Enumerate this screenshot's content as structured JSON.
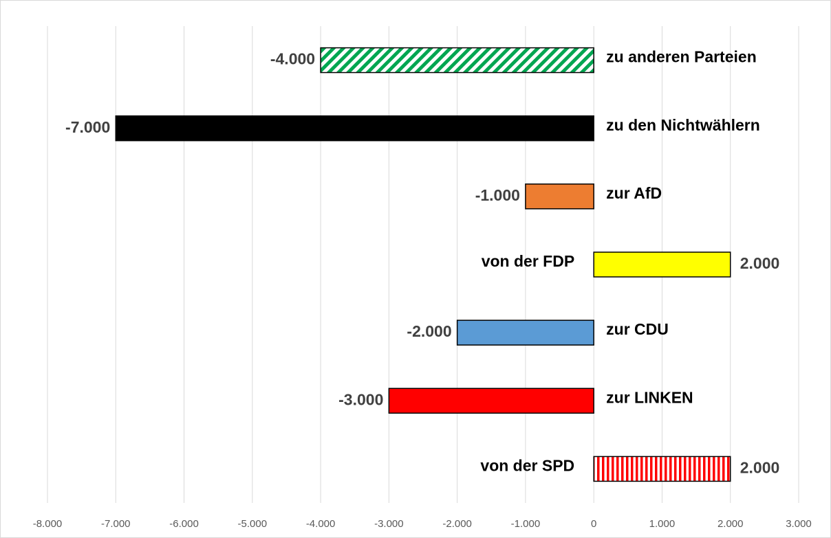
{
  "chart_data": {
    "type": "barh",
    "categories": [
      "zu anderen Parteien",
      "zu den Nichtwählern",
      "zur AfD",
      "von der FDP",
      "zur CDU",
      "zur LINKEN",
      "von der SPD"
    ],
    "values": [
      -4000,
      -7000,
      -1000,
      2000,
      -2000,
      -3000,
      2000
    ],
    "value_labels": [
      "-4.000",
      "-7.000",
      "-1.000",
      "2.000",
      "-2.000",
      "-3.000",
      "2.000"
    ],
    "colors": [
      "#00a651",
      "#000000",
      "#ed7d31",
      "#ffff00",
      "#5b9bd5",
      "#ff0000",
      "#ff0000"
    ],
    "patterns": [
      "diagonal",
      "solid",
      "solid",
      "solid",
      "solid",
      "solid",
      "vertical"
    ],
    "xlim": [
      -8000,
      3000
    ],
    "xticks": [
      {
        "value": -8000,
        "label": "-8.000"
      },
      {
        "value": -7000,
        "label": "-7.000"
      },
      {
        "value": -6000,
        "label": "-6.000"
      },
      {
        "value": -5000,
        "label": "-5.000"
      },
      {
        "value": -4000,
        "label": "-4.000"
      },
      {
        "value": -3000,
        "label": "-3.000"
      },
      {
        "value": -2000,
        "label": "-2.000"
      },
      {
        "value": -1000,
        "label": "-1.000"
      },
      0,
      {
        "value": 1000,
        "label": "1.000"
      },
      {
        "value": 2000,
        "label": "2.000"
      },
      {
        "value": 3000,
        "label": "3.000"
      }
    ],
    "grid": true
  }
}
